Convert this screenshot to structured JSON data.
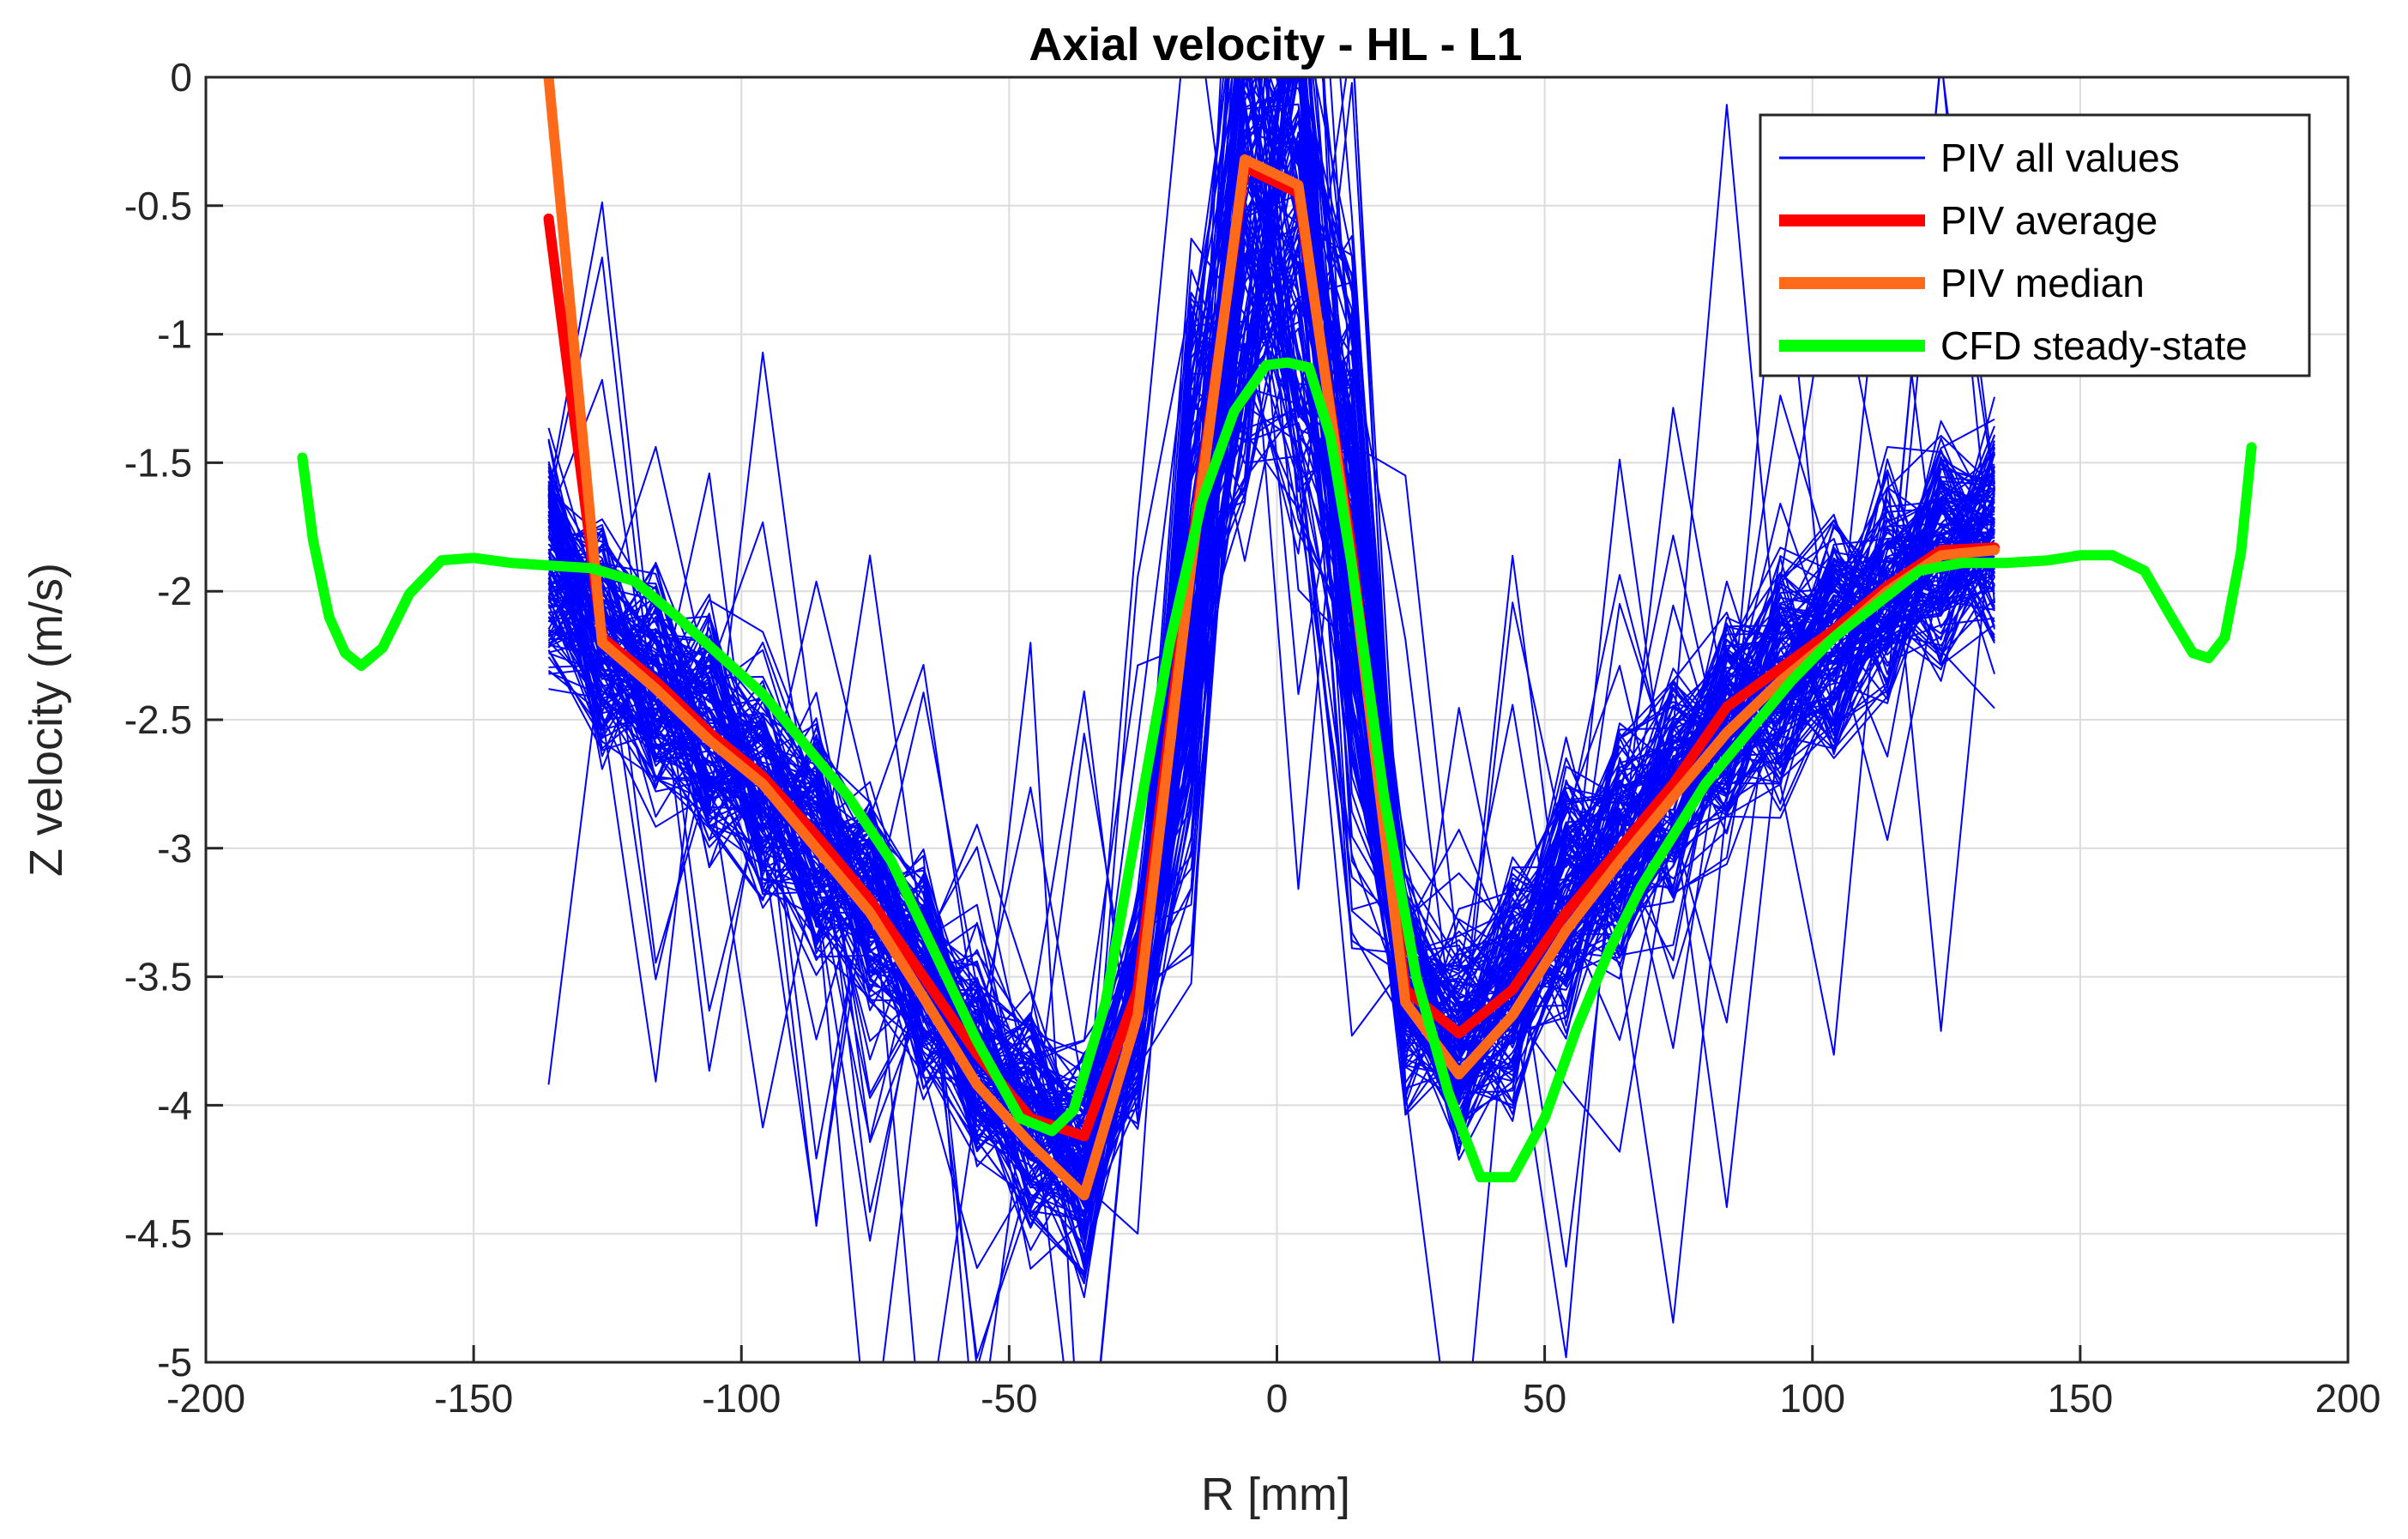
{
  "chart_data": {
    "type": "line",
    "title": "Axial velocity - HL - L1",
    "xlabel": "R [mm]",
    "ylabel": "Z velocity (m/s)",
    "xlim": [
      -200,
      200
    ],
    "ylim": [
      -5,
      0
    ],
    "xticks": [
      -200,
      -150,
      -100,
      -50,
      0,
      50,
      100,
      150,
      200
    ],
    "yticks": [
      0,
      -0.5,
      -1,
      -1.5,
      -2,
      -2.5,
      -3,
      -3.5,
      -4,
      -4.5,
      -5
    ],
    "grid": true,
    "legend_position": "top-right",
    "series": [
      {
        "name": "PIV all values",
        "color": "#0000ff",
        "style": "thin",
        "x": [
          -136,
          -126,
          -116,
          -106,
          -96,
          -86,
          -76,
          -66,
          -56,
          -46,
          -36,
          -26,
          -16,
          -6,
          4,
          14,
          24,
          34,
          44,
          54,
          64,
          74,
          84,
          94,
          104,
          114,
          124,
          134
        ],
        "y_center": [
          -1.9,
          -2.2,
          -2.4,
          -2.55,
          -2.75,
          -2.95,
          -3.2,
          -3.5,
          -3.8,
          -4.05,
          -4.2,
          -3.6,
          -2.0,
          -0.5,
          -0.55,
          -1.9,
          -3.5,
          -3.75,
          -3.55,
          -3.25,
          -3.0,
          -2.75,
          -2.5,
          -2.35,
          -2.2,
          -2.0,
          -1.85,
          -1.8
        ]
      },
      {
        "name": "PIV average",
        "color": "#ff0000",
        "style": "thick",
        "x": [
          -136,
          -126,
          -116,
          -106,
          -96,
          -86,
          -76,
          -66,
          -56,
          -46,
          -36,
          -26,
          -16,
          -6,
          4,
          14,
          24,
          34,
          44,
          54,
          64,
          74,
          84,
          94,
          104,
          114,
          124,
          134
        ],
        "y": [
          -0.55,
          -2.18,
          -2.35,
          -2.55,
          -2.72,
          -2.95,
          -3.2,
          -3.5,
          -3.8,
          -4.05,
          -4.12,
          -3.55,
          -1.85,
          -0.35,
          -0.45,
          -1.85,
          -3.55,
          -3.72,
          -3.55,
          -3.25,
          -3.0,
          -2.75,
          -2.45,
          -2.3,
          -2.15,
          -1.98,
          -1.84,
          -1.83
        ]
      },
      {
        "name": "PIV median",
        "color": "#ff6a1a",
        "style": "thick",
        "x": [
          -136,
          -126,
          -116,
          -106,
          -96,
          -86,
          -76,
          -66,
          -56,
          -46,
          -36,
          -26,
          -16,
          -6,
          4,
          14,
          24,
          34,
          44,
          54,
          64,
          74,
          84,
          94,
          104,
          114,
          124,
          134
        ],
        "y": [
          0.0,
          -2.2,
          -2.38,
          -2.58,
          -2.75,
          -3.0,
          -3.25,
          -3.58,
          -3.92,
          -4.15,
          -4.35,
          -3.65,
          -1.9,
          -0.32,
          -0.42,
          -1.9,
          -3.6,
          -3.88,
          -3.65,
          -3.32,
          -3.05,
          -2.8,
          -2.55,
          -2.35,
          -2.18,
          -2.0,
          -1.86,
          -1.84
        ]
      },
      {
        "name": "CFD steady-state",
        "color": "#00ff00",
        "style": "thick",
        "x": [
          -182,
          -180,
          -177,
          -174,
          -171,
          -167,
          -162,
          -156,
          -150,
          -143,
          -136,
          -128,
          -120,
          -112,
          -104,
          -96,
          -88,
          -80,
          -72,
          -64,
          -56,
          -48,
          -42,
          -38,
          -32,
          -26,
          -20,
          -14,
          -8,
          -2,
          2,
          6,
          10,
          14,
          20,
          26,
          32,
          38,
          44,
          50,
          56,
          62,
          68,
          74,
          80,
          88,
          96,
          104,
          112,
          120,
          128,
          136,
          144,
          150,
          156,
          162,
          167,
          171,
          174,
          177,
          180,
          182
        ],
        "y": [
          -1.48,
          -1.8,
          -2.1,
          -2.24,
          -2.29,
          -2.22,
          -2.01,
          -1.88,
          -1.87,
          -1.89,
          -1.9,
          -1.91,
          -1.96,
          -2.1,
          -2.25,
          -2.4,
          -2.6,
          -2.8,
          -3.05,
          -3.4,
          -3.75,
          -4.05,
          -4.1,
          -4.02,
          -3.6,
          -2.9,
          -2.2,
          -1.65,
          -1.3,
          -1.12,
          -1.11,
          -1.13,
          -1.4,
          -1.9,
          -2.8,
          -3.5,
          -3.95,
          -4.28,
          -4.28,
          -4.05,
          -3.7,
          -3.4,
          -3.15,
          -2.95,
          -2.75,
          -2.55,
          -2.35,
          -2.18,
          -2.05,
          -1.92,
          -1.89,
          -1.89,
          -1.88,
          -1.86,
          -1.86,
          -1.92,
          -2.1,
          -2.24,
          -2.26,
          -2.18,
          -1.85,
          -1.44
        ]
      }
    ]
  }
}
